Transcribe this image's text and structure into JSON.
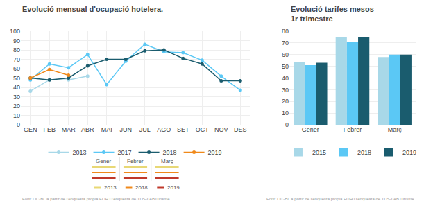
{
  "chart_data": [
    {
      "type": "line",
      "title": "Evolució mensual d'ocupació hotelera.",
      "categories": [
        "GEN",
        "FEB",
        "MAR",
        "ABR",
        "MAI",
        "JUN",
        "JUL",
        "AGO",
        "SET",
        "OCT",
        "NOV",
        "DES"
      ],
      "series": [
        {
          "name": "2013",
          "color": "#a8d8e8",
          "marker": "circle",
          "values": [
            36,
            48,
            48,
            52,
            null,
            null,
            null,
            null,
            null,
            null,
            null,
            null
          ]
        },
        {
          "name": "2017",
          "color": "#5bc8f5",
          "marker": "circle",
          "values": [
            48,
            65,
            61,
            75,
            43,
            68,
            86,
            78,
            77,
            69,
            52,
            37
          ]
        },
        {
          "name": "2018",
          "color": "#1a5c6e",
          "marker": "circle",
          "values": [
            50,
            48,
            50,
            63,
            70,
            70,
            79,
            80,
            71,
            65,
            47,
            47
          ]
        },
        {
          "name": "2019",
          "color": "#f0891a",
          "marker": "circle",
          "values": [
            50,
            59,
            53,
            null,
            null,
            null,
            null,
            null,
            null,
            null,
            null,
            null
          ]
        }
      ],
      "ylim": [
        0,
        100
      ],
      "yticks": [
        0,
        10,
        20,
        30,
        40,
        50,
        60,
        70,
        80,
        90,
        100
      ],
      "grid": true,
      "legend": "bottom",
      "annotations": [
        "Font: OC-BL a partir de l'enquesta pròpia EOH i l'enquesta de TDS-LABTurisme"
      ]
    },
    {
      "type": "bar",
      "title": "Evolució tarifes mesos\n1r trimestre",
      "categories": [
        "Gener",
        "Febrer",
        "Març"
      ],
      "series": [
        {
          "name": "2015",
          "color": "#a8d8e8",
          "values": [
            54,
            75,
            58
          ]
        },
        {
          "name": "2018",
          "color": "#5bc8f5",
          "values": [
            51,
            71,
            60
          ]
        },
        {
          "name": "2019",
          "color": "#1a5c6e",
          "values": [
            53,
            75,
            60
          ]
        }
      ],
      "ylim": [
        0,
        80
      ],
      "yticks": [
        0,
        10,
        20,
        30,
        40,
        50,
        60,
        70,
        80
      ],
      "grid": "y",
      "legend": "bottom",
      "annotations": [
        "Font: OC-BL a partir de l'enquesta pròpia EOH i l'enquesta de TDS-LABTurisme"
      ]
    },
    {
      "type": "table",
      "categories": [
        "Gener",
        "Febrer",
        "Març"
      ],
      "series": [
        {
          "name": "2013",
          "color": "#e8d875"
        },
        {
          "name": "2018",
          "color": "#f0891a"
        },
        {
          "name": "2019",
          "color": "#c0392b"
        }
      ]
    }
  ]
}
